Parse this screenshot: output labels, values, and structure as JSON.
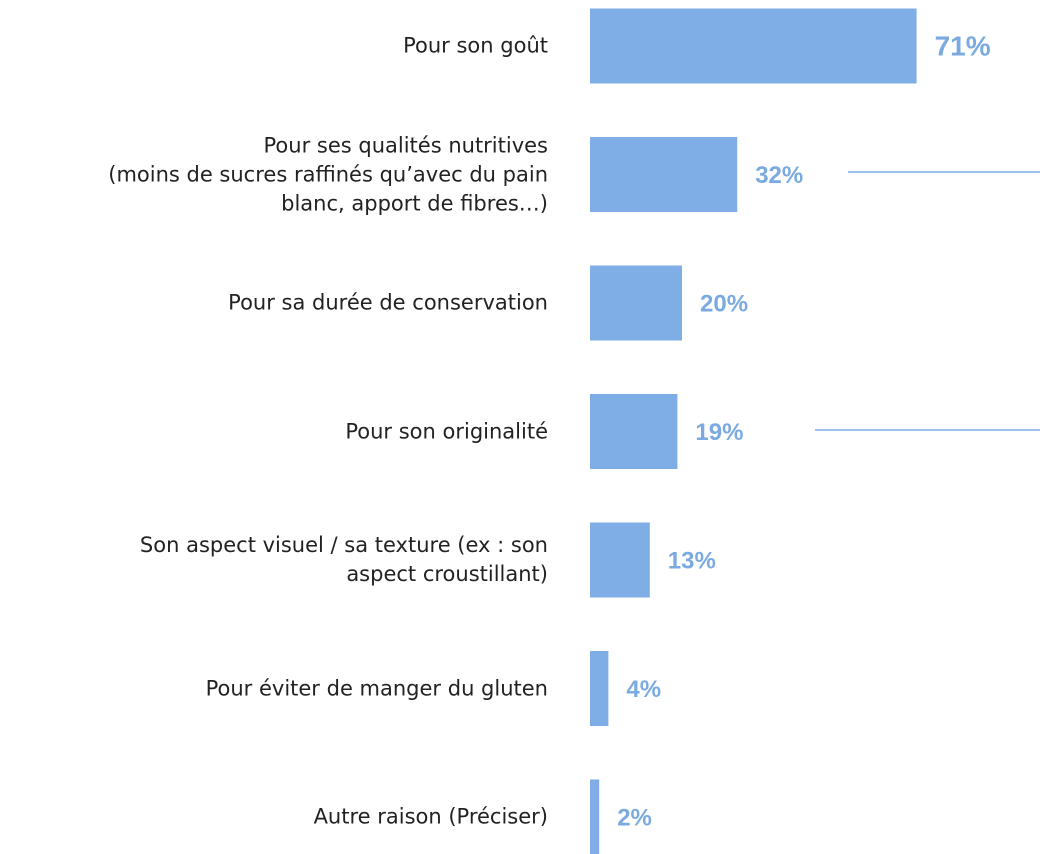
{
  "chart_data": {
    "type": "bar",
    "orientation": "horizontal",
    "categories": [
      "Pour son goût",
      "Pour ses qualités nutritives\n(moins de sucres raffinés qu’avec du pain\nblanc, apport de fibres…)",
      "Pour sa durée de conservation",
      "Pour son originalité",
      "Son aspect visuel / sa texture (ex : son\naspect croustillant)",
      "Pour éviter de manger du gluten",
      "Autre raison (Préciser)"
    ],
    "values": [
      71,
      32,
      20,
      19,
      13,
      4,
      2
    ],
    "value_labels": [
      "71%",
      "32%",
      "20%",
      "19%",
      "13%",
      "4%",
      "2%"
    ],
    "color": "#7eaee5"
  }
}
